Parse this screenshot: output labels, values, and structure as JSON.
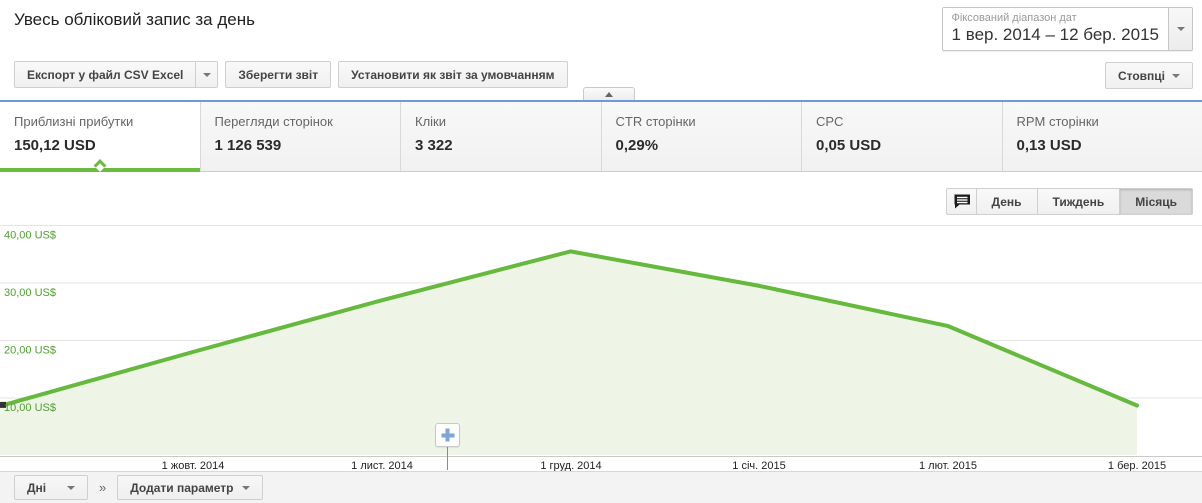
{
  "header": {
    "title": "Увесь обліковий запис за день",
    "date_range": {
      "label": "Фіксований діапазон дат",
      "value": "1 вер. 2014 – 12 бер. 2015"
    }
  },
  "toolbar": {
    "export_label": "Експорт у файл CSV Excel",
    "save_report_label": "Зберегти звіт",
    "set_default_label": "Установити як звіт за умовчанням",
    "columns_label": "Стовпці"
  },
  "metrics": [
    {
      "label": "Приблизні прибутки",
      "value": "150,12 USD",
      "active": true
    },
    {
      "label": "Перегляди сторінок",
      "value": "1 126 539",
      "active": false
    },
    {
      "label": "Кліки",
      "value": "3 322",
      "active": false
    },
    {
      "label": "CTR сторінки",
      "value": "0,29%",
      "active": false
    },
    {
      "label": "CPC",
      "value": "0,05 USD",
      "active": false
    },
    {
      "label": "RPM сторінки",
      "value": "0,13 USD",
      "active": false
    }
  ],
  "chart_controls": {
    "comment_icon": "comment-bubble",
    "granularity": [
      {
        "label": "День",
        "active": false
      },
      {
        "label": "Тиждень",
        "active": false
      },
      {
        "label": "Місяць",
        "active": true
      }
    ]
  },
  "chart_data": {
    "type": "area",
    "categories": [
      "вер. 2014",
      "жовт. 2014",
      "лист. 2014",
      "груд. 2014",
      "січ. 2015",
      "лют. 2015",
      "бер. 2015"
    ],
    "series": [
      {
        "name": "Приблизні прибутки (US$)",
        "values": [
          8.8,
          18.0,
          27.0,
          35.5,
          29.5,
          22.5,
          8.7
        ]
      }
    ],
    "unit": "US$",
    "x_axis_labels": [
      "1 жовт. 2014",
      "1 лист. 2014",
      "1 груд. 2014",
      "1 січ. 2015",
      "1 лют. 2015",
      "1 бер. 2015"
    ],
    "y_ticks": [
      10,
      20,
      30,
      40
    ],
    "y_tick_labels": [
      "10,00 US$",
      "20,00 US$",
      "30,00 US$",
      "40,00 US$"
    ],
    "ylim": [
      0,
      40.3
    ],
    "grid": "horizontal",
    "legend": "none",
    "colors": {
      "line": "#65b93c",
      "fill": "#eef4e6",
      "tick_label": "#4fa02f",
      "start_marker": "#333333"
    }
  },
  "footer": {
    "dimension_label": "Дні",
    "jump_separator": "»",
    "add_param_label": "Додати параметр"
  },
  "colors": {
    "accent_green": "#6bbc3e",
    "divider_blue": "#6f9ad1"
  }
}
